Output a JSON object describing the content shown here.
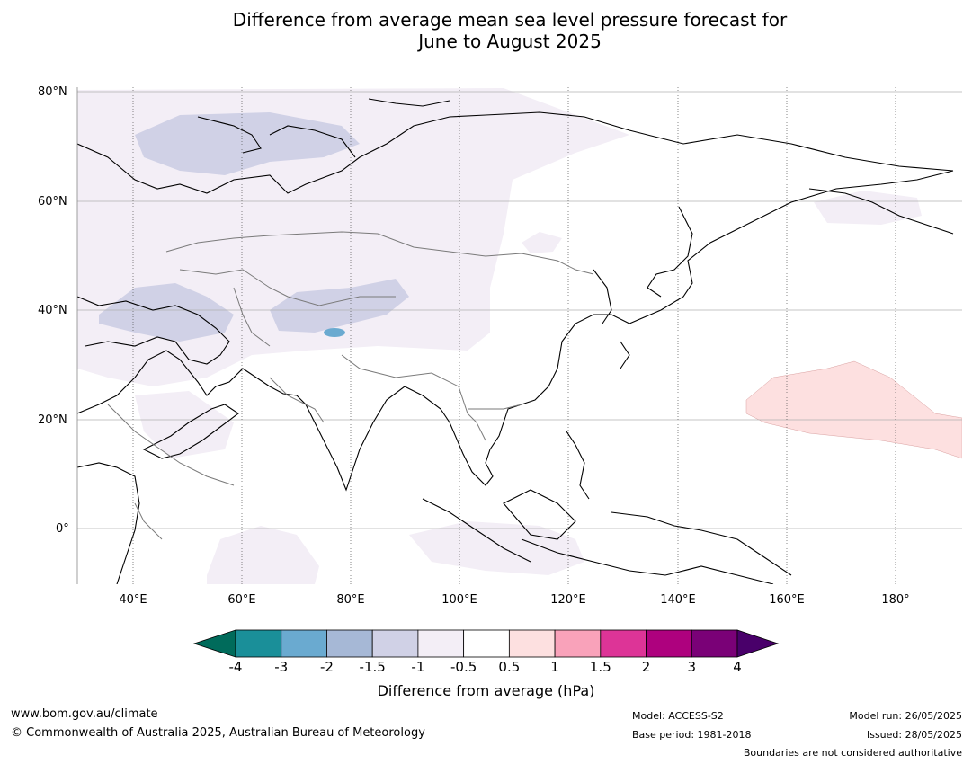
{
  "title_line1": "Difference from average mean sea level pressure forecast for",
  "title_line2": "June to August 2025",
  "map": {
    "lat_labels": [
      "80°N",
      "60°N",
      "40°N",
      "20°N",
      "0°"
    ],
    "lon_labels": [
      "40°E",
      "60°E",
      "80°E",
      "100°E",
      "120°E",
      "140°E",
      "160°E",
      "180°"
    ]
  },
  "colorbar": {
    "label": "Difference from average (hPa)",
    "ticks": [
      "-4",
      "-3",
      "-2",
      "-1.5",
      "-1",
      "-0.5",
      "0.5",
      "1",
      "1.5",
      "2",
      "3",
      "4"
    ],
    "colors": {
      "below_min": "#006b5b",
      "bins": [
        "#1a8f99",
        "#6aaad0",
        "#a6b8d6",
        "#d0d1e6",
        "#f3eef6",
        "#ffffff",
        "#fde0e0",
        "#f9a2ba",
        "#dd3497",
        "#ae017e",
        "#7a0177"
      ],
      "above_max": "#49006a"
    }
  },
  "footer": {
    "website": "www.bom.gov.au/climate",
    "copyright": "© Commonwealth of Australia 2025, Australian Bureau of Meteorology",
    "model": "Model: ACCESS-S2",
    "base_period": "Base period: 1981-2018",
    "model_run": "Model run: 26/05/2025",
    "issued": "Issued: 28/05/2025",
    "disclaimer": "Boundaries are not considered authoritative"
  }
}
